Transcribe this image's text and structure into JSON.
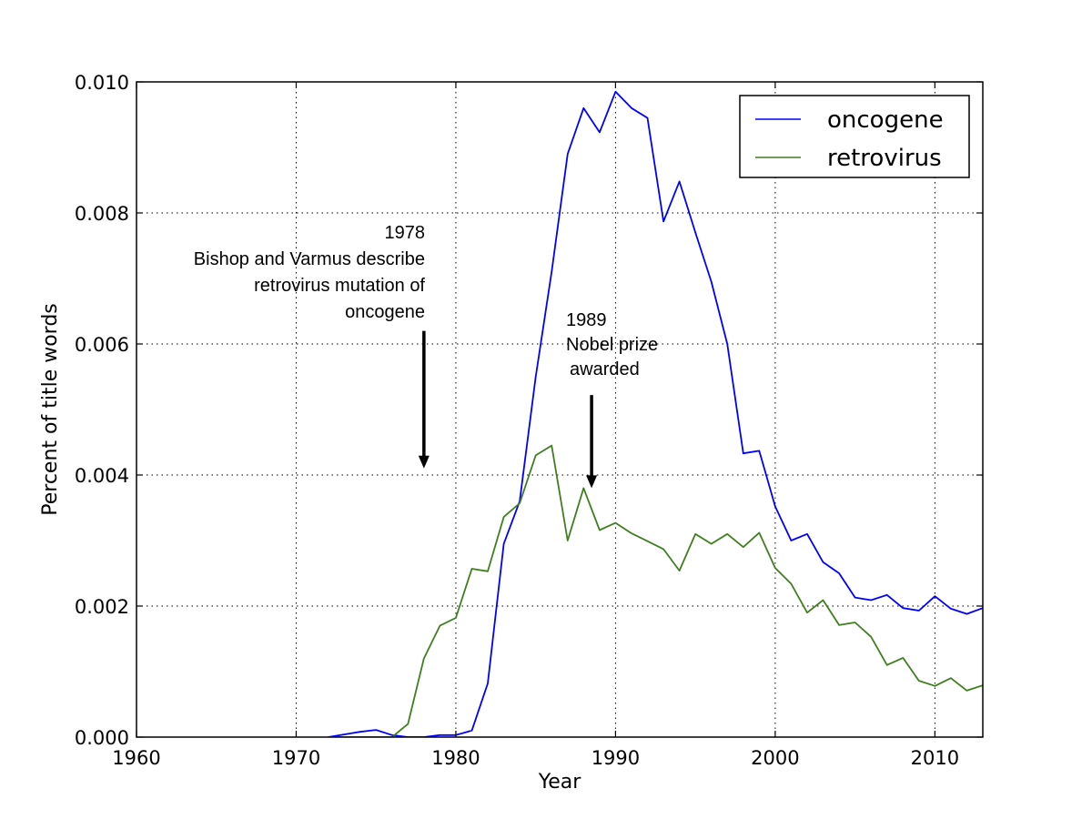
{
  "chart_data": {
    "type": "line",
    "title": "",
    "xlabel": "Year",
    "ylabel": "Percent of title words",
    "xlim": [
      1960,
      2013
    ],
    "ylim": [
      0.0,
      0.01
    ],
    "x_ticks": [
      1960,
      1970,
      1980,
      1990,
      2000,
      2010
    ],
    "y_ticks": [
      "0.000",
      "0.002",
      "0.004",
      "0.006",
      "0.008",
      "0.010"
    ],
    "y_tick_values": [
      0.0,
      0.002,
      0.004,
      0.006,
      0.008,
      0.01
    ],
    "grid": true,
    "legend_position": "top-right",
    "series": [
      {
        "name": "oncogene",
        "color": "#0000ff",
        "x": [
          1972,
          1973,
          1974,
          1975,
          1976,
          1977,
          1978,
          1979,
          1980,
          1981,
          1982,
          1983,
          1984,
          1985,
          1986,
          1987,
          1988,
          1989,
          1990,
          1991,
          1992,
          1993,
          1994,
          1995,
          1996,
          1997,
          1998,
          1999,
          2000,
          2001,
          2002,
          2003,
          2004,
          2005,
          2006,
          2007,
          2008,
          2009,
          2010,
          2011,
          2012,
          2013
        ],
        "values": [
          0.0,
          4e-05,
          8e-05,
          0.00011,
          3e-05,
          0.0,
          0.0,
          3e-05,
          3e-05,
          0.0001,
          0.00082,
          0.00295,
          0.0036,
          0.0055,
          0.0071,
          0.0089,
          0.0096,
          0.00923,
          0.00985,
          0.0096,
          0.00945,
          0.00787,
          0.00848,
          0.0077,
          0.00695,
          0.006,
          0.00433,
          0.00437,
          0.00352,
          0.003,
          0.0031,
          0.00267,
          0.0025,
          0.00213,
          0.00209,
          0.00217,
          0.00197,
          0.00193,
          0.00215,
          0.00196,
          0.00188,
          0.00197
        ]
      },
      {
        "name": "retrovirus",
        "color": "#3f7f1f",
        "x": [
          1972,
          1973,
          1974,
          1975,
          1976,
          1977,
          1978,
          1979,
          1980,
          1981,
          1982,
          1983,
          1984,
          1985,
          1986,
          1987,
          1988,
          1989,
          1990,
          1991,
          1992,
          1993,
          1994,
          1995,
          1996,
          1997,
          1998,
          1999,
          2000,
          2001,
          2002,
          2003,
          2004,
          2005,
          2006,
          2007,
          2008,
          2009,
          2010,
          2011,
          2012,
          2013
        ],
        "values": [
          0.0,
          0.0,
          0.0,
          0.0,
          0.0,
          0.0002,
          0.0012,
          0.0017,
          0.00182,
          0.00257,
          0.00253,
          0.00336,
          0.00357,
          0.0043,
          0.00445,
          0.003,
          0.0038,
          0.00316,
          0.00327,
          0.00311,
          0.00299,
          0.00287,
          0.00254,
          0.0031,
          0.00295,
          0.0031,
          0.0029,
          0.00312,
          0.00258,
          0.00234,
          0.0019,
          0.00209,
          0.00171,
          0.00175,
          0.00153,
          0.0011,
          0.00121,
          0.00086,
          0.00078,
          0.0009,
          0.00071,
          0.00079
        ]
      }
    ],
    "annotations": [
      {
        "lines": [
          "1978",
          "Bishop and Varmus describe",
          "retrovirus mutation of",
          "oncogene"
        ],
        "arrow_x": 1978,
        "arrow_from_y": 0.0062,
        "arrow_to_y": 0.0041
      },
      {
        "lines": [
          "1989",
          "Nobel prize",
          "awarded"
        ],
        "arrow_x": 1988.5,
        "arrow_from_y": 0.00522,
        "arrow_to_y": 0.0038
      }
    ]
  }
}
